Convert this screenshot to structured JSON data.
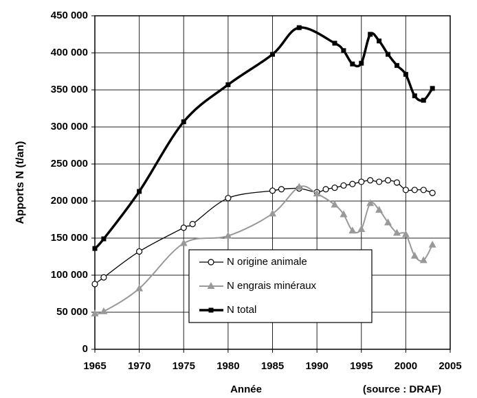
{
  "chart_data": {
    "type": "line",
    "ylabel": "Apports N (t/an)",
    "xlabel": "Année",
    "annotation": "(source : DRAF)",
    "xlim": [
      1965,
      2005
    ],
    "xticks": [
      1965,
      1970,
      1975,
      1980,
      1985,
      1990,
      1995,
      2000,
      2005
    ],
    "ylim": [
      0,
      450000
    ],
    "yticks": [
      {
        "value": 0,
        "label": "0"
      },
      {
        "value": 50000,
        "label": "50 000"
      },
      {
        "value": 100000,
        "label": "100 000"
      },
      {
        "value": 150000,
        "label": "150 000"
      },
      {
        "value": 200000,
        "label": "200 000"
      },
      {
        "value": 250000,
        "label": "250 000"
      },
      {
        "value": 300000,
        "label": "300 000"
      },
      {
        "value": 350000,
        "label": "350 000"
      },
      {
        "value": 400000,
        "label": "400 000"
      },
      {
        "value": 450000,
        "label": "450 000"
      }
    ],
    "grid": true,
    "smooth": true,
    "series": [
      {
        "name": "N origine animale",
        "color": "#000000",
        "marker": "circle",
        "width": 1.3,
        "x": [
          1965,
          1966,
          1970,
          1975,
          1976,
          1980,
          1985,
          1986,
          1988,
          1990,
          1991,
          1992,
          1993,
          1994,
          1995,
          1996,
          1997,
          1998,
          1999,
          2000,
          2001,
          2002,
          2003
        ],
        "values": [
          88000,
          97000,
          132000,
          164000,
          169000,
          204000,
          214000,
          216000,
          217000,
          212000,
          216000,
          218000,
          221000,
          223000,
          226000,
          228000,
          226000,
          228000,
          225000,
          215000,
          215000,
          215000,
          211000
        ]
      },
      {
        "name": "N engrais minéraux",
        "color": "#999999",
        "marker": "triangle",
        "width": 2,
        "x": [
          1965,
          1966,
          1970,
          1975,
          1980,
          1985,
          1988,
          1990,
          1992,
          1993,
          1994,
          1995,
          1996,
          1997,
          1998,
          1999,
          2000,
          2001,
          2002,
          2003
        ],
        "values": [
          48000,
          51000,
          82000,
          143000,
          153000,
          183000,
          219000,
          210000,
          195000,
          182000,
          160000,
          162000,
          197000,
          188000,
          171000,
          157000,
          155000,
          126000,
          120000,
          141000
        ]
      },
      {
        "name": "N total",
        "color": "#000000",
        "marker": "square",
        "width": 3.5,
        "x": [
          1965,
          1966,
          1970,
          1975,
          1980,
          1985,
          1988,
          1992,
          1993,
          1994,
          1995,
          1996,
          1997,
          1998,
          1999,
          2000,
          2001,
          2002,
          2003
        ],
        "values": [
          136000,
          149000,
          213000,
          307000,
          357000,
          398000,
          434000,
          413000,
          403000,
          385000,
          386000,
          425000,
          416000,
          398000,
          383000,
          371000,
          342000,
          336000,
          352000
        ]
      }
    ]
  }
}
